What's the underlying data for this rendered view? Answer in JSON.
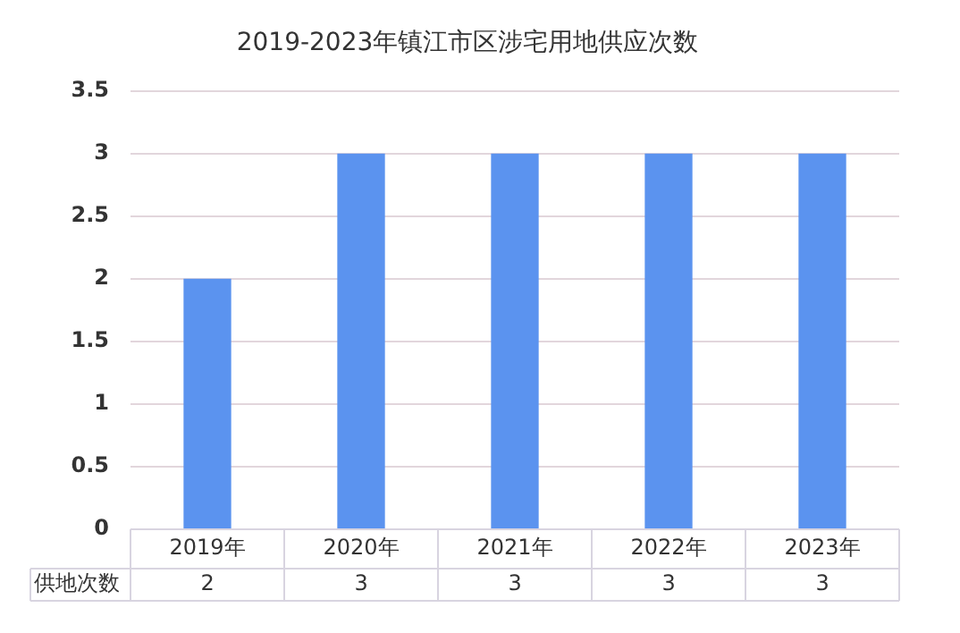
{
  "chart_data": {
    "type": "bar",
    "title": "2019-2023年镇江市区涉宅用地供应次数",
    "categories": [
      "2019年",
      "2020年",
      "2021年",
      "2022年",
      "2023年"
    ],
    "series": [
      {
        "name": "供地次数",
        "color": "#5b93ef",
        "values": [
          2,
          3,
          3,
          3,
          3
        ]
      }
    ],
    "ylim": [
      0,
      3.5
    ],
    "yticks": [
      0,
      0.5,
      1,
      1.5,
      2,
      2.5,
      3,
      3.5
    ],
    "grid": "y",
    "legend": false,
    "data_labels": true
  }
}
